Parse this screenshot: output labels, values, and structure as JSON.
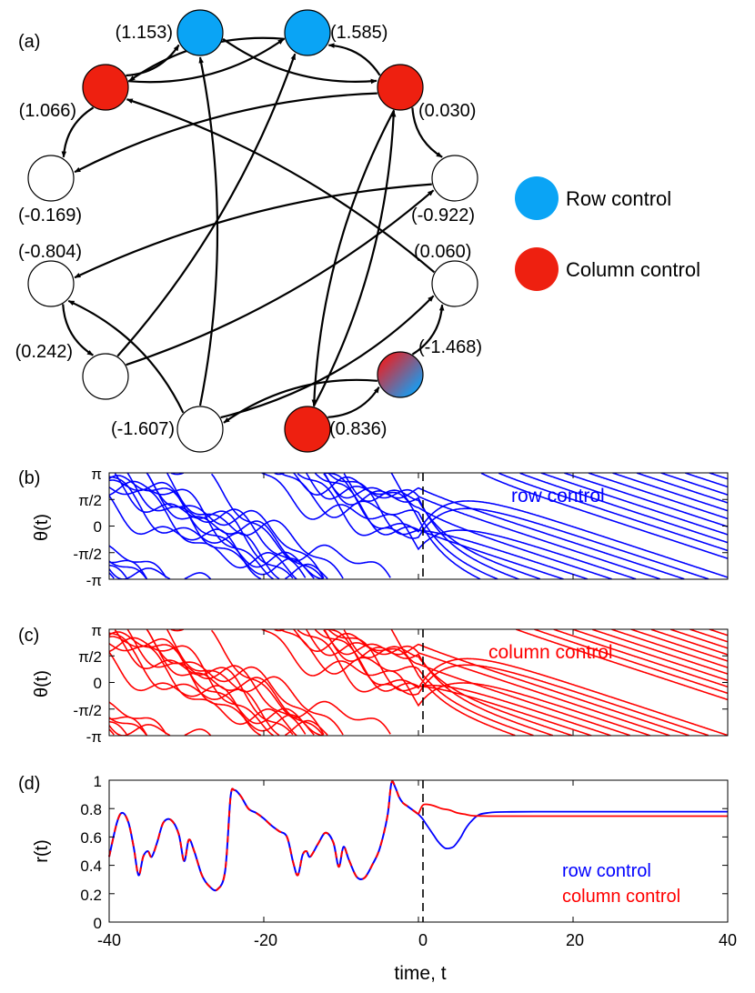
{
  "colors": {
    "row": "#0aa4f5",
    "column": "#ee2010",
    "row_line": "#0000ff",
    "column_line": "#ff0000"
  },
  "panel_labels": [
    "(a)",
    "(b)",
    "(c)",
    "(d)"
  ],
  "network": {
    "nodes": [
      {
        "id": "n1",
        "label": "(1.153)",
        "type": "row"
      },
      {
        "id": "n2",
        "label": "(1.585)",
        "type": "row"
      },
      {
        "id": "n3",
        "label": "(0.030)",
        "type": "column"
      },
      {
        "id": "n4",
        "label": "(-0.922)",
        "type": "none"
      },
      {
        "id": "n5",
        "label": "(0.060)",
        "type": "none"
      },
      {
        "id": "n6",
        "label": "(-1.468)",
        "type": "both"
      },
      {
        "id": "n7",
        "label": "(0.836)",
        "type": "column"
      },
      {
        "id": "n8",
        "label": "(-1.607)",
        "type": "none"
      },
      {
        "id": "n9",
        "label": "(0.242)",
        "type": "none"
      },
      {
        "id": "n10",
        "label": "(-0.804)",
        "type": "none"
      },
      {
        "id": "n11",
        "label": "(-0.169)",
        "type": "none"
      },
      {
        "id": "n12",
        "label": "(1.066)",
        "type": "column"
      }
    ],
    "edges": [
      [
        "n12",
        "n1"
      ],
      [
        "n12",
        "n2"
      ],
      [
        "n1",
        "n3"
      ],
      [
        "n2",
        "n12"
      ],
      [
        "n12",
        "n11"
      ],
      [
        "n3",
        "n11"
      ],
      [
        "n3",
        "n4"
      ],
      [
        "n3",
        "n2"
      ],
      [
        "n3",
        "n7"
      ],
      [
        "n9",
        "n2"
      ],
      [
        "n8",
        "n1"
      ],
      [
        "n8",
        "n10"
      ],
      [
        "n10",
        "n9"
      ],
      [
        "n9",
        "n4"
      ],
      [
        "n4",
        "n10"
      ],
      [
        "n5",
        "n12"
      ],
      [
        "n7",
        "n3"
      ],
      [
        "n7",
        "n6"
      ],
      [
        "n6",
        "n8"
      ],
      [
        "n6",
        "n5"
      ],
      [
        "n8",
        "n5"
      ]
    ]
  },
  "legend": [
    {
      "label": "Row control",
      "type": "row"
    },
    {
      "label": "Column control",
      "type": "column"
    }
  ],
  "chart_data": [
    {
      "type": "line",
      "panel": "(b)",
      "ylabel": "θ(t)",
      "xlim": [
        -40,
        40
      ],
      "ylim": [
        -3.1416,
        3.1416
      ],
      "yticks": [
        "-π",
        "-π/2",
        "0",
        "π/2",
        "π"
      ],
      "annotation": "row control",
      "control_time": 0,
      "series_count": 12,
      "phases_at_t0": [
        0.42,
        -0.35,
        0.9,
        1.55,
        -0.05,
        0.28,
        2.1,
        -1.1,
        0.65,
        1.2,
        -0.6,
        0.15
      ],
      "angular_velocity_after_control": -0.15
    },
    {
      "type": "line",
      "panel": "(c)",
      "ylabel": "θ(t)",
      "xlim": [
        -40,
        40
      ],
      "ylim": [
        -3.1416,
        3.1416
      ],
      "yticks": [
        "-π",
        "-π/2",
        "0",
        "π/2",
        "π"
      ],
      "annotation": "column control",
      "control_time": 0,
      "series_count": 12,
      "phases_at_t0": [
        0.42,
        -0.35,
        0.9,
        1.55,
        -0.05,
        0.28,
        2.1,
        -1.1,
        0.65,
        1.2,
        -0.6,
        0.15
      ],
      "angular_velocity_after_control": -0.15
    },
    {
      "type": "line",
      "panel": "(d)",
      "xlabel": "time, t",
      "ylabel": "r(t)",
      "xlim": [
        -40,
        40
      ],
      "ylim": [
        0,
        1
      ],
      "xticks": [
        "-40",
        "-20",
        "0",
        "20",
        "40"
      ],
      "yticks": [
        "0",
        "0.2",
        "0.4",
        "0.6",
        "0.8",
        "1"
      ],
      "legend": [
        "row control",
        "column control"
      ],
      "x": [
        -40,
        -39,
        -38.3,
        -37.5,
        -36.8,
        -36.2,
        -35.6,
        -35,
        -34.5,
        -33.8,
        -33,
        -32,
        -31,
        -30.3,
        -29.7,
        -29,
        -28,
        -27,
        -26,
        -25,
        -24.3,
        -23.8,
        -23,
        -22,
        -21,
        -20,
        -19,
        -18,
        -17,
        -16.2,
        -15.6,
        -15,
        -14.5,
        -14,
        -13,
        -12,
        -11,
        -10.3,
        -9.7,
        -9,
        -8,
        -7,
        -6,
        -5,
        -4,
        -3.5,
        -3,
        -2.5,
        -2,
        -1.5,
        -1,
        -0.5,
        0
      ],
      "r_before": [
        0.46,
        0.7,
        0.77,
        0.7,
        0.52,
        0.33,
        0.46,
        0.5,
        0.46,
        0.56,
        0.7,
        0.72,
        0.62,
        0.43,
        0.58,
        0.5,
        0.33,
        0.25,
        0.23,
        0.36,
        0.88,
        0.93,
        0.89,
        0.8,
        0.77,
        0.73,
        0.68,
        0.64,
        0.6,
        0.42,
        0.33,
        0.47,
        0.5,
        0.46,
        0.55,
        0.63,
        0.56,
        0.39,
        0.53,
        0.44,
        0.32,
        0.31,
        0.4,
        0.52,
        0.75,
        0.98,
        0.95,
        0.88,
        0.84,
        0.82,
        0.8,
        0.78,
        0.76
      ],
      "series": [
        {
          "name": "row control",
          "x": [
            0,
            0.5,
            1,
            1.5,
            2,
            2.5,
            3,
            3.5,
            4,
            4.5,
            5,
            5.5,
            6,
            6.5,
            7,
            7.5,
            8,
            9,
            10,
            12,
            15,
            20,
            30,
            40
          ],
          "values": [
            0.76,
            0.73,
            0.69,
            0.65,
            0.61,
            0.57,
            0.54,
            0.52,
            0.52,
            0.53,
            0.56,
            0.6,
            0.65,
            0.69,
            0.72,
            0.745,
            0.76,
            0.77,
            0.775,
            0.777,
            0.778,
            0.778,
            0.778,
            0.778
          ]
        },
        {
          "name": "column control",
          "x": [
            0,
            0.5,
            1,
            2,
            3,
            4,
            5,
            6,
            7,
            8,
            9,
            10,
            12,
            15,
            20,
            30,
            40
          ],
          "values": [
            0.76,
            0.82,
            0.83,
            0.82,
            0.8,
            0.79,
            0.77,
            0.76,
            0.75,
            0.748,
            0.747,
            0.747,
            0.747,
            0.747,
            0.747,
            0.747,
            0.747
          ]
        }
      ]
    }
  ]
}
